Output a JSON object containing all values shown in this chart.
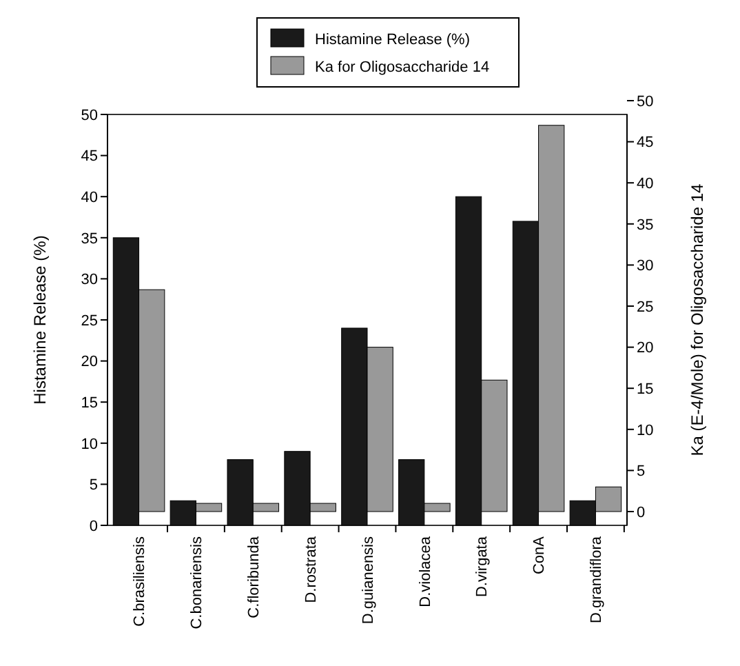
{
  "chart_data": {
    "type": "bar",
    "categories": [
      "C.brasiliensis",
      "C.bonariensis",
      "C.floribunda",
      "D.rostrata",
      "D.guianensis",
      "D.violacea",
      "D.virgata",
      "ConA",
      "D.grandiflora"
    ],
    "series": [
      {
        "name": "Histamine Release (%)",
        "color": "#1a1a1a",
        "values": [
          35,
          3,
          8,
          9,
          24,
          8,
          40,
          37,
          3
        ]
      },
      {
        "name": "Ka for Oligosaccharide 14",
        "color": "#999999",
        "axis": "y2",
        "values": [
          27,
          1,
          1,
          1,
          20,
          1,
          16,
          47,
          3
        ]
      }
    ],
    "ylabel": "Histamine Release (%)",
    "y2label": "Ka (E-4/Mole) for Oligosaccharide 14",
    "ylim": [
      0,
      50
    ],
    "yticks": [
      0,
      5,
      10,
      15,
      20,
      25,
      30,
      35,
      40,
      45,
      50
    ],
    "y2lim": [
      0,
      50
    ],
    "y2ticks": [
      0,
      5,
      10,
      15,
      20,
      25,
      30,
      35,
      40,
      45,
      50
    ],
    "legend": "top",
    "grid": false
  }
}
